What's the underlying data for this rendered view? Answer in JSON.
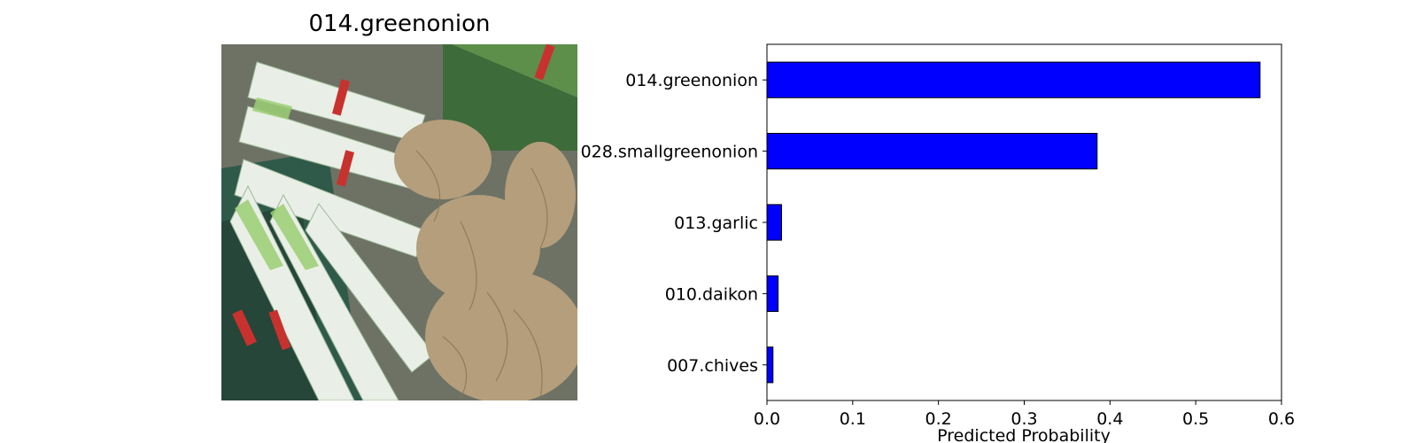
{
  "image_panel": {
    "title": "014.greenonion",
    "subject": "bunches of green onions with white stalks and roots tied with red bands"
  },
  "colors": {
    "bar_fill": "#0000ff",
    "bar_edge": "#000000",
    "stalk": "#e9efe6",
    "leaf": "#2f5a4a",
    "root": "#b59e7c",
    "band": "#c8322e"
  },
  "chart_data": {
    "type": "bar",
    "orientation": "horizontal",
    "categories": [
      "014.greenonion",
      "028.smallgreenonion",
      "013.garlic",
      "010.daikon",
      "007.chives"
    ],
    "values": [
      0.575,
      0.385,
      0.017,
      0.013,
      0.007
    ],
    "title": "",
    "xlabel": "Predicted Probability",
    "ylabel": "",
    "xlim": [
      0,
      0.6
    ],
    "xticks": [
      "0.0",
      "0.1",
      "0.2",
      "0.3",
      "0.4",
      "0.5",
      "0.6"
    ],
    "grid": false,
    "legend": "none"
  }
}
